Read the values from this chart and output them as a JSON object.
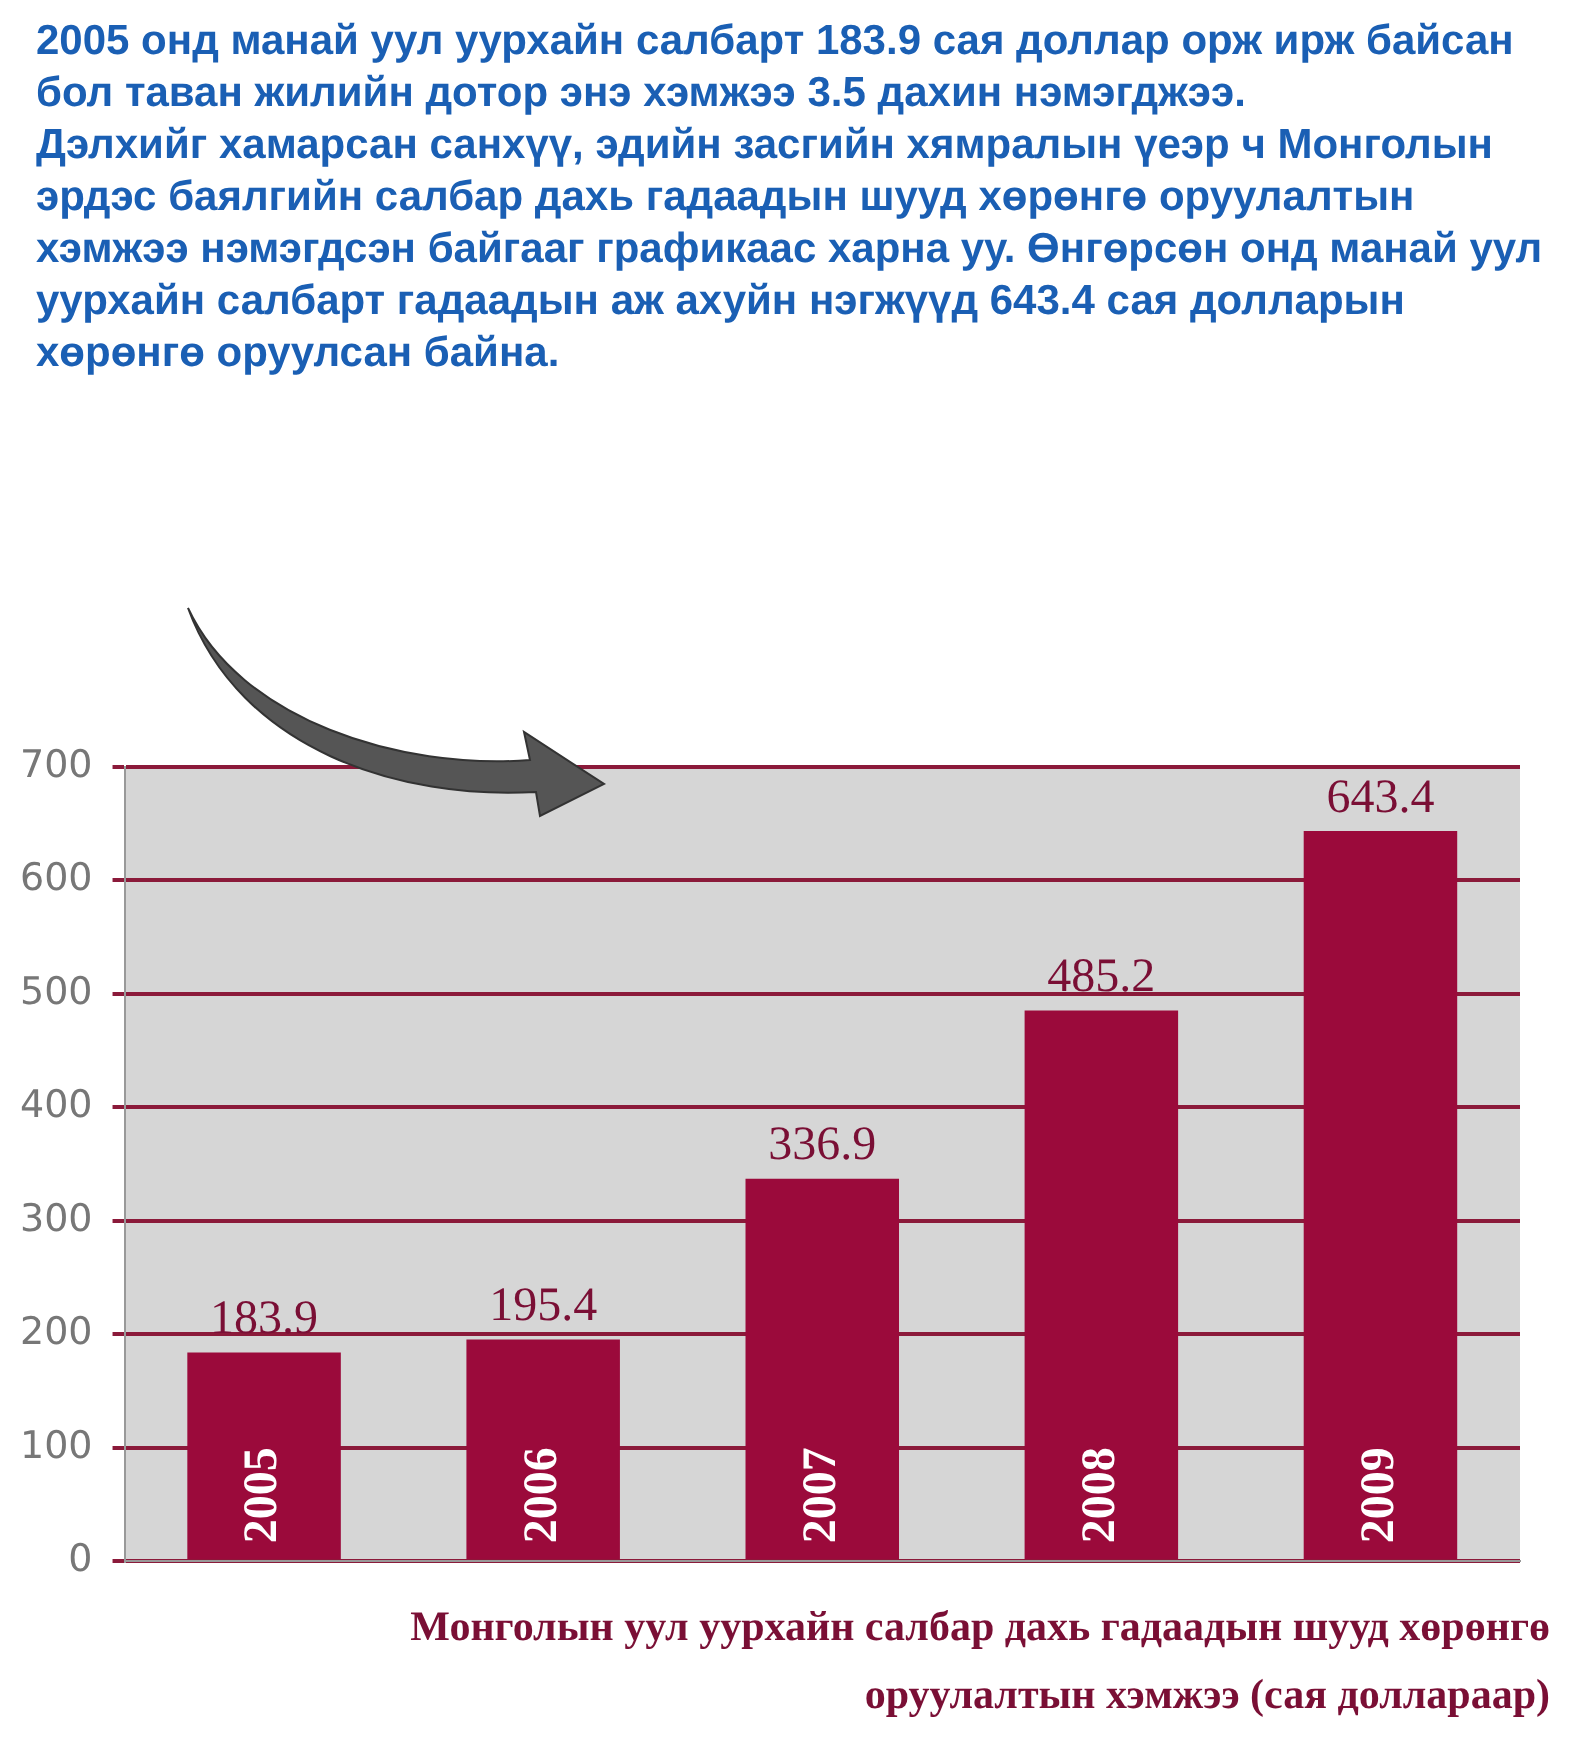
{
  "chart_data": {
    "type": "bar",
    "title": "2005 онд манай уул уурхайн салбарт 183.9 сая доллар орж ирж байсан бол таван жилийн дотор энэ хэмжээ 3.5 дахин нэмэгджээ.",
    "subtitle": "Дэлхийг хамарсан санхүү, эдийн засгийн хямралын үеэр ч Монголын эрдэс баялгийн салбар дахь гадаадын шууд хөрөнгө оруулалтын хэмжээ нэмэгдсэн байгааг графикаас харна уу. Өнгөрсөн онд манай уул уурхайн салбарт гадаадын аж ахуйн нэгжүүд 643.4 сая долларын хөрөнгө оруулсан байна.",
    "annotations": [
      "Монголын уул уурхайн салбар дахь гадаадын шууд хөрөнгө оруулалтын хэмжээ (сая доллараар)"
    ],
    "categories": [
      "2005",
      "2006",
      "2007",
      "2008",
      "2009"
    ],
    "values": [
      183.9,
      195.4,
      336.9,
      485.2,
      643.4
    ],
    "color": "#9b0a3b",
    "ylim": [
      0,
      700
    ],
    "yticks": [
      0,
      100,
      200,
      300,
      400,
      500,
      600,
      700
    ],
    "grid": "y",
    "data_labels": true,
    "legend": false
  }
}
